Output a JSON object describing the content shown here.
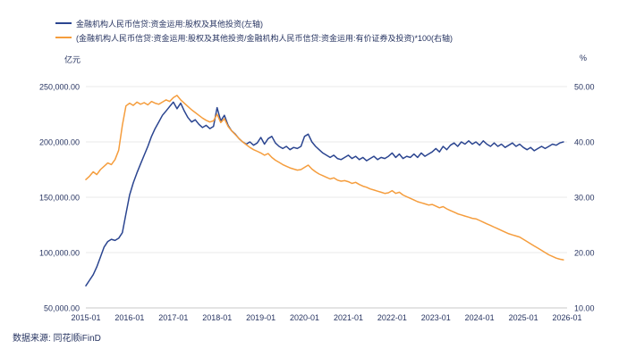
{
  "source_text": "数据来源: 同花顺iFinD",
  "chart_data": {
    "type": "line",
    "title": "",
    "left_unit": "亿元",
    "right_unit": "%",
    "grid": true,
    "legend_position": "top-left",
    "x_start": "2015-01",
    "x_end": "2026-01",
    "x_tick_labels": [
      "2015-01",
      "2016-01",
      "2017-01",
      "2018-01",
      "2019-01",
      "2020-01",
      "2021-01",
      "2022-01",
      "2023-01",
      "2024-01",
      "2025-01",
      "2026-01"
    ],
    "left_axis": {
      "min": 50000,
      "max": 250000,
      "tick_labels": [
        "250,000.00",
        "200,000.00",
        "150,000.00",
        "100,000.00",
        "50,000.00"
      ]
    },
    "right_axis": {
      "min": 10,
      "max": 50,
      "tick_labels": [
        "50.00",
        "40.00",
        "30.00",
        "20.00",
        "10.00"
      ]
    },
    "series": [
      {
        "name": "金融机构人民币信贷:资金运用:股权及其他投资(左轴)",
        "axis": "left",
        "color": "#2b4590",
        "values": [
          70000,
          75000,
          80000,
          87000,
          96000,
          105000,
          110000,
          112000,
          111000,
          113000,
          118000,
          135000,
          152000,
          163000,
          172000,
          180000,
          188000,
          196000,
          205000,
          212000,
          218000,
          224000,
          228000,
          232000,
          236000,
          230000,
          235000,
          228000,
          222000,
          218000,
          220000,
          216000,
          213000,
          215000,
          212000,
          214000,
          231000,
          219000,
          224000,
          215000,
          210000,
          207000,
          203000,
          200000,
          198000,
          200000,
          197000,
          199000,
          204000,
          198000,
          203000,
          205000,
          199000,
          196000,
          194000,
          196000,
          193000,
          195000,
          194000,
          196000,
          205000,
          207000,
          200000,
          196000,
          193000,
          190000,
          188000,
          186000,
          188000,
          185000,
          184000,
          186000,
          188000,
          185000,
          187000,
          184000,
          186000,
          183000,
          185000,
          187000,
          184000,
          186000,
          185000,
          187000,
          190000,
          186000,
          189000,
          185000,
          187000,
          186000,
          189000,
          186000,
          190000,
          187000,
          189000,
          191000,
          194000,
          191000,
          196000,
          193000,
          197000,
          199000,
          196000,
          200000,
          198000,
          201000,
          198000,
          200000,
          197000,
          201000,
          198000,
          196000,
          199000,
          196000,
          198000,
          195000,
          197000,
          199000,
          196000,
          198000,
          195000,
          193000,
          195000,
          192000,
          194000,
          196000,
          194000,
          196000,
          198000,
          197000,
          199000,
          200000
        ]
      },
      {
        "name": "(金融机构人民币信贷:资金运用:股权及其他投资/金融机构人民币信贷:资金运用:有价证券及投资)*100(右轴)",
        "axis": "right",
        "color": "#f59d3d",
        "values": [
          33.2,
          33.8,
          34.6,
          34.1,
          35.0,
          35.6,
          36.2,
          35.9,
          36.8,
          38.5,
          43.0,
          46.5,
          47.0,
          46.6,
          47.2,
          46.8,
          47.1,
          46.7,
          47.3,
          47.0,
          46.8,
          47.2,
          47.6,
          47.3,
          48.0,
          48.4,
          47.6,
          47.0,
          46.4,
          45.8,
          45.3,
          44.8,
          44.3,
          43.9,
          43.6,
          43.8,
          45.0,
          43.5,
          44.2,
          42.8,
          42.0,
          41.3,
          40.6,
          40.0,
          39.5,
          39.0,
          38.6,
          38.3,
          38.0,
          37.6,
          37.9,
          37.2,
          36.7,
          36.3,
          35.9,
          35.6,
          35.3,
          35.1,
          34.9,
          35.0,
          35.4,
          35.8,
          35.1,
          34.6,
          34.2,
          33.9,
          33.6,
          33.3,
          33.5,
          33.1,
          32.9,
          33.0,
          32.8,
          32.5,
          32.7,
          32.3,
          32.0,
          31.8,
          31.5,
          31.3,
          31.1,
          30.9,
          30.7,
          30.8,
          31.2,
          30.7,
          30.9,
          30.4,
          30.1,
          29.8,
          29.5,
          29.2,
          29.0,
          28.8,
          28.6,
          28.7,
          28.4,
          28.1,
          28.3,
          27.9,
          27.6,
          27.3,
          27.0,
          26.8,
          26.6,
          26.4,
          26.2,
          26.1,
          25.8,
          25.5,
          25.2,
          24.9,
          24.6,
          24.3,
          24.0,
          23.7,
          23.4,
          23.2,
          23.0,
          22.8,
          22.4,
          22.0,
          21.6,
          21.2,
          20.8,
          20.4,
          20.0,
          19.6,
          19.3,
          19.0,
          18.8,
          18.7
        ]
      }
    ]
  }
}
